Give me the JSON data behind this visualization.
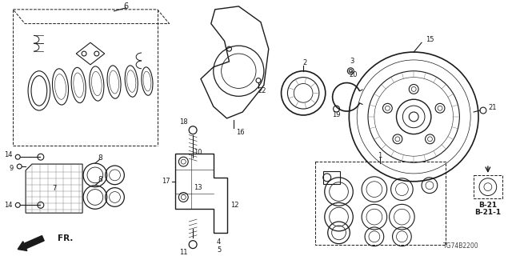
{
  "bg_color": "#ffffff",
  "diagram_code": "TG74B2200",
  "ref_codes": [
    "B-21",
    "B-21-1"
  ],
  "fig_width": 6.4,
  "fig_height": 3.2,
  "dpi": 100,
  "gray": "#1a1a1a",
  "lgray": "#777777"
}
